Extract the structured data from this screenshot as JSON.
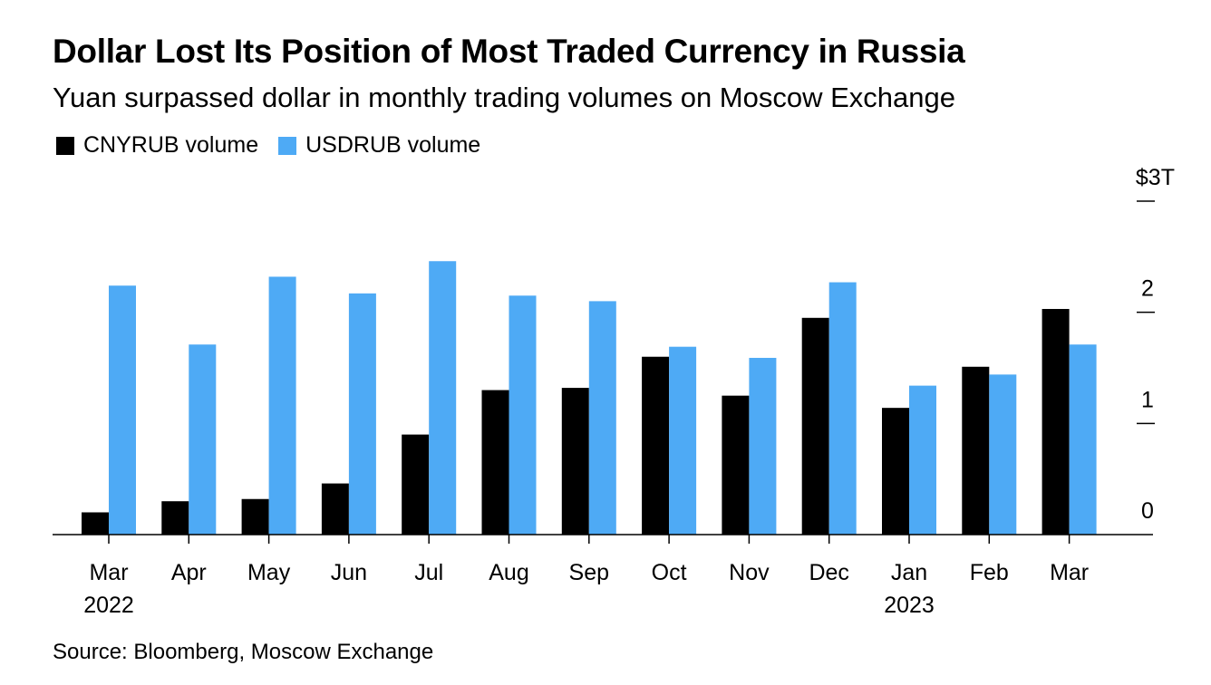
{
  "header": {
    "title": "Dollar Lost Its Position of Most Traded Currency in Russia",
    "subtitle": "Yuan surpassed dollar in monthly trading volumes on Moscow Exchange"
  },
  "legend": {
    "items": [
      {
        "label": "CNYRUB volume",
        "color": "#000000"
      },
      {
        "label": "USDRUB volume",
        "color": "#4EAAF5"
      }
    ]
  },
  "footer": {
    "source": "Source: Bloomberg, Moscow Exchange"
  },
  "chart_data": {
    "type": "bar",
    "categories": [
      "Mar",
      "Apr",
      "May",
      "Jun",
      "Jul",
      "Aug",
      "Sep",
      "Oct",
      "Nov",
      "Dec",
      "Jan",
      "Feb",
      "Mar"
    ],
    "category_sublabels": [
      "2022",
      "",
      "",
      "",
      "",
      "",
      "",
      "",
      "",
      "",
      "2023",
      "",
      ""
    ],
    "series": [
      {
        "name": "CNYRUB volume",
        "color": "#000000",
        "values": [
          0.2,
          0.3,
          0.32,
          0.46,
          0.9,
          1.3,
          1.32,
          1.6,
          1.25,
          1.95,
          1.14,
          1.51,
          2.03
        ]
      },
      {
        "name": "USDRUB volume",
        "color": "#4EAAF5",
        "values": [
          2.24,
          1.71,
          2.32,
          2.17,
          2.46,
          2.15,
          2.1,
          1.69,
          1.59,
          2.27,
          1.34,
          1.44,
          1.71
        ]
      }
    ],
    "y_ticks": [
      {
        "value": 0,
        "label": "0"
      },
      {
        "value": 1,
        "label": "1"
      },
      {
        "value": 2,
        "label": "2"
      },
      {
        "value": 3,
        "label": "$3T"
      }
    ],
    "ylim": [
      0,
      3
    ],
    "y_axis_position": "right",
    "grid": false,
    "legend_position": "top-left"
  }
}
